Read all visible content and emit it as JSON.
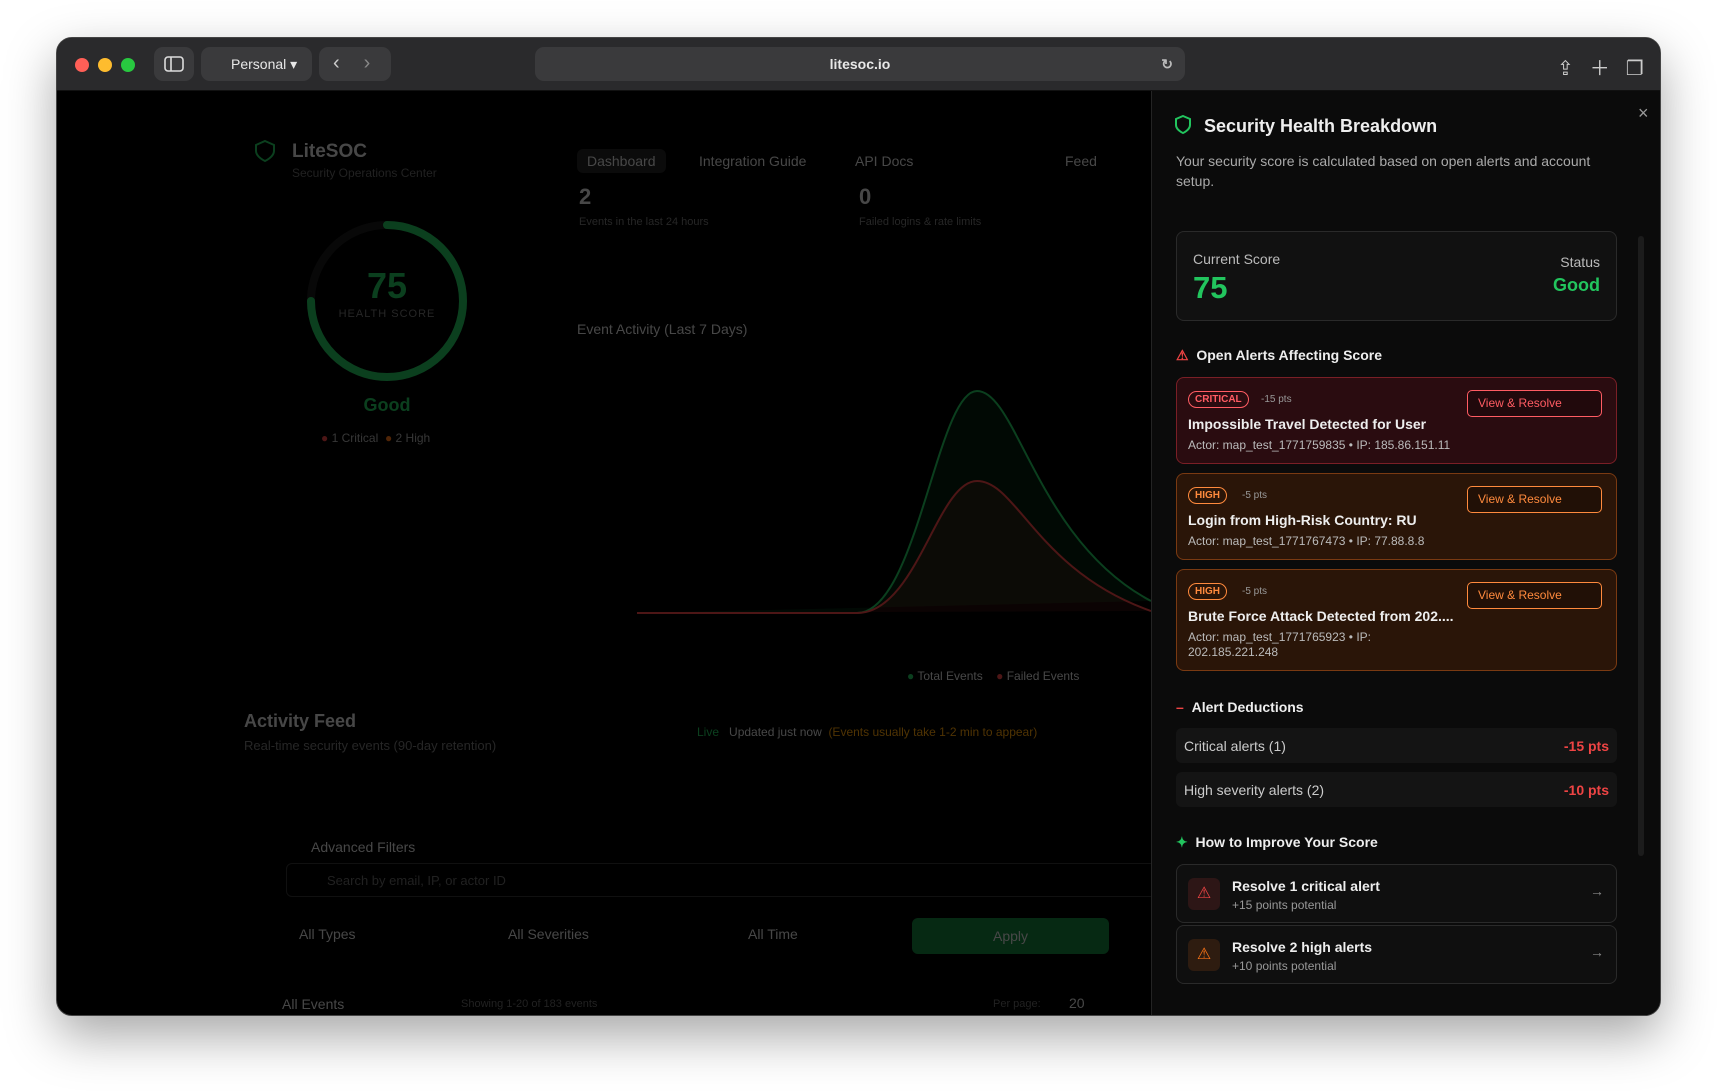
{
  "browser": {
    "profile": "Personal",
    "url": "litesoc.io"
  },
  "dashboard": {
    "brand": "LiteSOC",
    "tagline": "Security Operations Center",
    "nav": [
      "Dashboard",
      "Integration Guide",
      "API Docs",
      "Feed"
    ],
    "score": 75,
    "score_label": "HEALTH SCORE",
    "status": "Good",
    "legend": [
      "1 Critical",
      "2 High"
    ],
    "stats": [
      {
        "value": "2",
        "label": "Events in the last 24 hours"
      },
      {
        "value": "0",
        "label": "Failed logins & rate limits"
      }
    ],
    "chart_title": "Event Activity (Last 7 Days)",
    "chart_legend": [
      "Total Events",
      "Failed Events"
    ],
    "feed_title": "Activity Feed",
    "feed_subtitle": "Real-time security events (90-day retention)",
    "live": "Live",
    "updated": "Updated just now",
    "note": "(Events usually take 1-2 min to appear)",
    "filters_title": "Advanced Filters",
    "search_placeholder": "Search by email, IP, or actor ID",
    "filters": [
      "All Types",
      "All Severities",
      "All Time"
    ],
    "apply": "Apply",
    "events_title": "All Events",
    "showing": "Showing 1-20 of 183 events",
    "per_page": "Per page:",
    "per_page_value": "20"
  },
  "panel": {
    "title": "Security Health Breakdown",
    "description": "Your security score is calculated based on open alerts and account setup.",
    "current_score_label": "Current Score",
    "current_score": 75,
    "status_label": "Status",
    "status": "Good",
    "alerts_title": "Open Alerts Affecting Score",
    "alerts": [
      {
        "severity": "CRITICAL",
        "points": "-15 pts",
        "title": "Impossible Travel Detected for User",
        "detail": "Actor: map_test_1771759835 • IP: 185.86.151.11",
        "action": "View & Resolve"
      },
      {
        "severity": "HIGH",
        "points": "-5 pts",
        "title": "Login from High-Risk Country: RU",
        "detail": "Actor: map_test_1771767473 • IP: 77.88.8.8",
        "action": "View & Resolve"
      },
      {
        "severity": "HIGH",
        "points": "-5 pts",
        "title": "Brute Force Attack Detected from 202....",
        "detail": "Actor: map_test_1771765923 • IP: 202.185.221.248",
        "action": "View & Resolve"
      }
    ],
    "deductions_title": "Alert Deductions",
    "deductions": [
      {
        "label": "Critical alerts (1)",
        "value": "-15 pts"
      },
      {
        "label": "High severity alerts (2)",
        "value": "-10 pts"
      }
    ],
    "improve_title": "How to Improve Your Score",
    "improvements": [
      {
        "title": "Resolve 1 critical alert",
        "subtitle": "+15 points potential",
        "severity": "critical"
      },
      {
        "title": "Resolve 2 high alerts",
        "subtitle": "+10 points potential",
        "severity": "high"
      }
    ]
  }
}
